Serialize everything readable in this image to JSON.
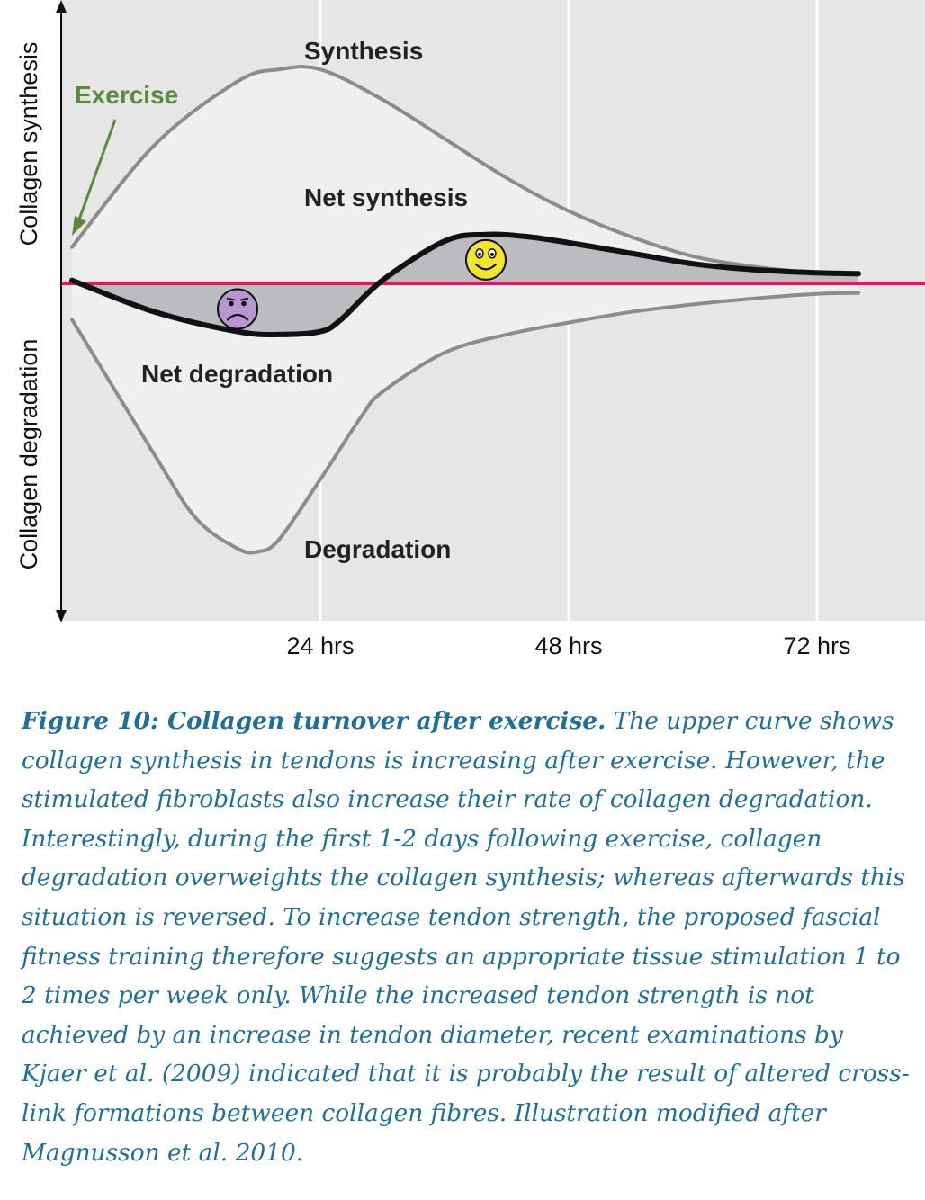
{
  "chart_data": {
    "type": "line",
    "ylabel_top": "Collagen synthesis",
    "ylabel_bottom": "Collagen degradation",
    "x_ticks": [
      "24 hrs",
      "48 hrs",
      "72 hrs"
    ],
    "x_tick_values": [
      24,
      48,
      72
    ],
    "xlim": [
      0,
      83
    ],
    "ylim": [
      -10,
      7.5
    ],
    "grid": "vertical",
    "series": [
      {
        "name": "Synthesis",
        "color": "#8c8c8c",
        "x": [
          0,
          8,
          16,
          20,
          24,
          30,
          36,
          42,
          48,
          54,
          60,
          66,
          72,
          76
        ],
        "y": [
          1.2,
          4.6,
          6.7,
          7.1,
          7.1,
          6.1,
          4.8,
          3.5,
          2.4,
          1.55,
          0.9,
          0.55,
          0.35,
          0.32
        ]
      },
      {
        "name": "Net synthesis",
        "color": "#111111",
        "x": [
          0,
          8,
          16,
          20,
          24,
          26,
          30,
          36,
          40,
          44,
          48,
          54,
          60,
          66,
          72,
          76
        ],
        "y": [
          0.1,
          -0.95,
          -1.6,
          -1.7,
          -1.6,
          -1.2,
          0.1,
          1.4,
          1.62,
          1.55,
          1.35,
          1.0,
          0.65,
          0.45,
          0.35,
          0.32
        ]
      },
      {
        "name": "Degradation",
        "color": "#8c8c8c",
        "x": [
          0,
          8,
          12,
          16,
          18,
          20,
          24,
          28,
          30,
          36,
          42,
          48,
          54,
          60,
          66,
          72,
          76
        ],
        "y": [
          -1.2,
          -5.7,
          -7.8,
          -8.8,
          -8.9,
          -8.5,
          -6.5,
          -4.4,
          -3.6,
          -2.3,
          -1.7,
          -1.3,
          -0.95,
          -0.7,
          -0.5,
          -0.35,
          -0.32
        ]
      }
    ],
    "annotations": {
      "exercise": "Exercise",
      "net_degradation": "Net degradation",
      "sad_face_at": [
        16,
        -0.85
      ],
      "happy_face_at": [
        40,
        0.78
      ]
    },
    "colors": {
      "plot_background": "#e6e6e6",
      "envelope_fill": "#efefef",
      "net_area_fill": "#bbbcbf",
      "baseline": "#e0185c",
      "exercise": "#5c8a3c",
      "sad_face": "#b996d2",
      "happy_face": "#f2e52c"
    }
  },
  "caption": {
    "title": "Figure 10: Collagen turnover after exercise.",
    "body": " The upper curve shows collagen synthesis in tendons is increasing after exercise. However, the stimulated fibroblasts also increase their rate of collagen degradation. Interestingly, during the first 1-2 days following exercise, collagen degradation overweights the collagen synthesis; whereas afterwards this situation is reversed. To increase tendon strength, the proposed fascial fitness training therefore suggests an appropriate tissue stimulation 1 to 2 times per week only. While the increased tendon strength is not achieved by an increase in tendon diameter, recent examinations by Kjaer et al. (2009) indicated that it is probably the result of altered cross-link formations between collagen fibres. Illustration modified after Magnusson et al. 2010."
  }
}
